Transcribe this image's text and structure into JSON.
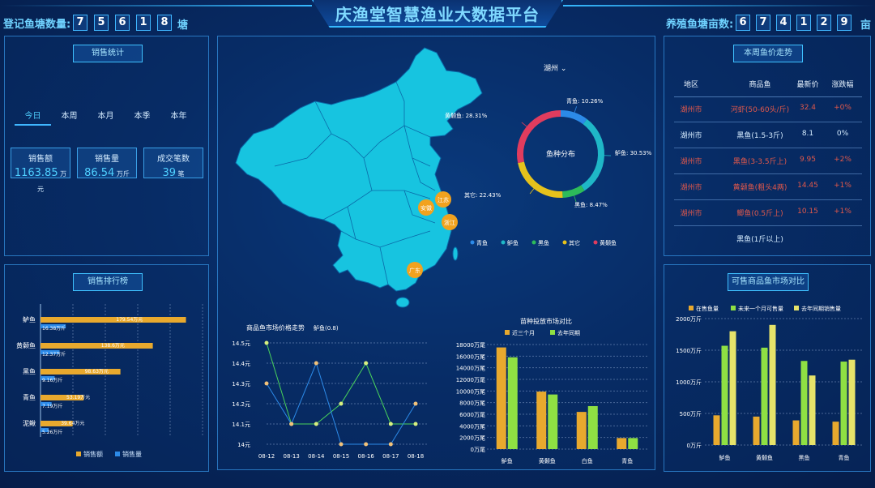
{
  "header": {
    "title": "庆渔堂智慧渔业大数据平台",
    "left_counter": {
      "label": "登记鱼塘数量:",
      "digits": [
        "7",
        "5",
        "6",
        "1",
        "8"
      ],
      "unit": "塘"
    },
    "right_counter": {
      "label": "养殖鱼塘亩数:",
      "digits": [
        "6",
        "7",
        "4",
        "1",
        "2",
        "9"
      ],
      "unit": "亩"
    }
  },
  "sales_stats": {
    "title": "销售统计",
    "tabs": [
      "今日",
      "本周",
      "本月",
      "本季",
      "本年"
    ],
    "active_tab": 0,
    "cards": [
      {
        "label": "销售额",
        "value": "1163.85",
        "unit": "万元"
      },
      {
        "label": "销售量",
        "value": "86.54",
        "unit": "万斤"
      },
      {
        "label": "成交笔数",
        "value": "39",
        "unit": "笔"
      }
    ]
  },
  "sales_rank": {
    "title": "销售排行榜",
    "legend": [
      "销售额",
      "销售量"
    ],
    "colors": {
      "amount": "#e8a92e",
      "volume": "#2c8ae8"
    },
    "chart_data": {
      "type": "bar",
      "orientation": "horizontal",
      "categories": [
        "鲈鱼",
        "黄颡鱼",
        "黑鱼",
        "青鱼",
        "泥鳅"
      ],
      "series": [
        {
          "name": "销售额",
          "values": [
            179.54,
            138.6,
            98.63,
            53.19,
            39.64
          ],
          "labels": [
            "179.54万元",
            "138.6万元",
            "98.63万元",
            "53.19万元",
            "39.64万元"
          ]
        },
        {
          "name": "销售量",
          "values": [
            16.38,
            12.37,
            9.16,
            7.19,
            5.26
          ],
          "labels": [
            "16.38万斤",
            "12.37万斤",
            "9.16万斤",
            "7.19万斤",
            "5.26万斤"
          ]
        }
      ]
    }
  },
  "map": {
    "region_select": "湖州",
    "markers": [
      "江苏",
      "安徽",
      "浙江",
      "广东"
    ],
    "marker_color": "#f2a21e"
  },
  "species": {
    "center_label": "鱼种分布",
    "colors": {
      "青鱼": "#2c8ae8",
      "鲈鱼": "#1fb7c7",
      "黑鱼": "#2dbb5a",
      "其它": "#e6c21c",
      "黄颡鱼": "#e03c5e"
    },
    "chart_data": {
      "type": "pie",
      "categories": [
        "青鱼",
        "鲈鱼",
        "黑鱼",
        "其它",
        "黄颡鱼"
      ],
      "values": [
        10.26,
        30.53,
        8.47,
        22.43,
        28.31
      ],
      "labels": [
        "青鱼: 10.26%",
        "鲈鱼: 30.53%",
        "黑鱼: 8.47%",
        "其它: 22.43%",
        "黄颡鱼: 28.31%"
      ],
      "legend": [
        "青鱼",
        "鲈鱼",
        "黑鱼",
        "其它",
        "黄颡鱼"
      ]
    }
  },
  "price_trend": {
    "title": "商品鱼市场价格走势",
    "selector": "鲈鱼(0.8)",
    "chart_data": {
      "type": "line",
      "x": [
        "08-12",
        "08-13",
        "08-14",
        "08-15",
        "08-16",
        "08-17",
        "08-18"
      ],
      "y_ticks": [
        "14.5元",
        "14.4元",
        "14.3元",
        "14.2元",
        "14.1元",
        "14元"
      ],
      "ylim": [
        14.0,
        14.5
      ],
      "series": [
        {
          "name": "green",
          "color": "#49d35b",
          "values": [
            14.5,
            14.1,
            14.1,
            14.2,
            14.4,
            14.1,
            14.1
          ]
        },
        {
          "name": "blue",
          "color": "#2c8ae8",
          "values": [
            14.3,
            14.1,
            14.4,
            14.0,
            14.0,
            14.0,
            14.2
          ]
        }
      ]
    }
  },
  "seedling": {
    "title": "苗种投放市场对比",
    "legend": [
      "近三个月",
      "去年同期"
    ],
    "colors": [
      "#e8a92e",
      "#8fe043"
    ],
    "chart_data": {
      "type": "bar",
      "categories": [
        "鲈鱼",
        "黄颡鱼",
        "白鱼",
        "青鱼"
      ],
      "y_ticks": [
        "18000万尾",
        "16000万尾",
        "14000万尾",
        "12000万尾",
        "10000万尾",
        "8000万尾",
        "6000万尾",
        "4000万尾",
        "2000万尾",
        "0万尾"
      ],
      "ylim": [
        0,
        18000
      ],
      "series": [
        {
          "name": "近三个月",
          "values": [
            17500,
            9900,
            6400,
            1900
          ]
        },
        {
          "name": "去年同期",
          "values": [
            15800,
            9400,
            7400,
            1900
          ]
        }
      ]
    }
  },
  "weekly_price": {
    "title": "本周鱼价走势",
    "headers": [
      "地区",
      "商品鱼",
      "最新价",
      "涨跌幅"
    ],
    "rows": [
      {
        "region": "湖州市",
        "fish": "河虾(50-60头/斤)",
        "price": "32.4",
        "change": "+0%",
        "hot": true
      },
      {
        "region": "湖州市",
        "fish": "黑鱼(1.5-3斤)",
        "price": "8.1",
        "change": "0%",
        "hot": false
      },
      {
        "region": "湖州市",
        "fish": "黑鱼(3-3.5斤上)",
        "price": "9.95",
        "change": "+2%",
        "hot": true
      },
      {
        "region": "湖州市",
        "fish": "黄颡鱼(粗头4两)",
        "price": "14.45",
        "change": "+1%",
        "hot": true
      },
      {
        "region": "湖州市",
        "fish": "鲫鱼(0.5斤上)",
        "price": "10.15",
        "change": "+1%",
        "hot": true
      }
    ],
    "partial_row": "黑鱼(1斤以上)"
  },
  "available": {
    "title": "可售商品鱼市场对比",
    "legend": [
      "在售鱼量",
      "未来一个月可售量",
      "去年同期销售量"
    ],
    "colors": [
      "#e8a92e",
      "#8fe043",
      "#e6e36a"
    ],
    "chart_data": {
      "type": "bar",
      "categories": [
        "鲈鱼",
        "黄颡鱼",
        "黑鱼",
        "青鱼"
      ],
      "y_ticks": [
        "2000万斤",
        "1500万斤",
        "1000万斤",
        "500万斤",
        "0万斤"
      ],
      "ylim": [
        0,
        2000
      ],
      "series": [
        {
          "name": "在售鱼量",
          "values": [
            470,
            450,
            390,
            370
          ]
        },
        {
          "name": "未来一个月可售量",
          "values": [
            1570,
            1540,
            1330,
            1320
          ]
        },
        {
          "name": "去年同期销售量",
          "values": [
            1800,
            1900,
            1100,
            1350
          ]
        }
      ]
    }
  }
}
